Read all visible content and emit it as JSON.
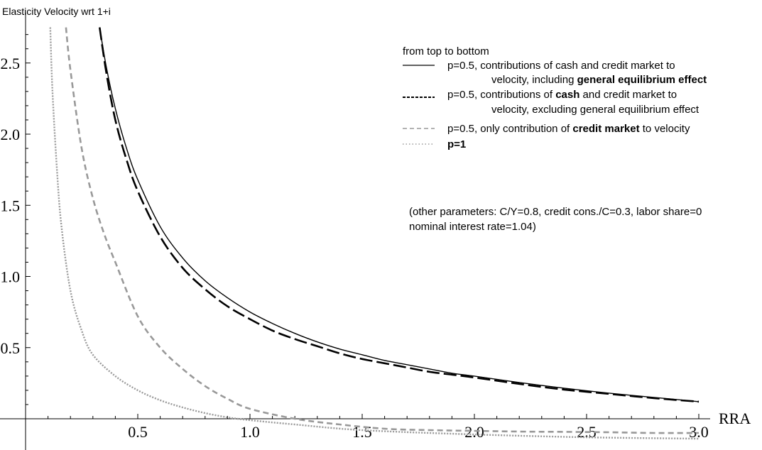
{
  "chart_data": {
    "type": "line",
    "title": "",
    "ylabel": "Elasticity Velocity wrt 1+i",
    "xlabel": "RRA",
    "xlim": [
      0,
      3.0
    ],
    "ylim": [
      -0.2,
      2.75
    ],
    "x_ticks": [
      0.5,
      1.0,
      1.5,
      2.0,
      2.5,
      3.0
    ],
    "x_tick_labels": [
      "0.5",
      "1.0",
      "1.5",
      "2.0",
      "2.5",
      "3.0"
    ],
    "y_ticks": [
      0.5,
      1.0,
      1.5,
      2.0,
      2.5
    ],
    "y_tick_labels": [
      "0.5",
      "1.0",
      "1.5",
      "2.0",
      "2.5"
    ],
    "grid": false,
    "legend_position": "top-right",
    "legend_header": "from top to bottom",
    "legend": [
      {
        "style": "solid",
        "line1": [
          {
            "t": "p=0.5, contributions of cash and credit market to",
            "b": false
          }
        ],
        "line2": [
          {
            "t": "velocity, including ",
            "b": false
          },
          {
            "t": "general equilibrium effect",
            "b": true
          }
        ]
      },
      {
        "style": "dashed",
        "line1": [
          {
            "t": "p=0.5, contributions of ",
            "b": false
          },
          {
            "t": "cash",
            "b": true
          },
          {
            "t": " and credit market to",
            "b": false
          }
        ],
        "line2": [
          {
            "t": "velocity, excluding general equilibrium effect",
            "b": false
          }
        ]
      },
      {
        "style": "gray-dashed",
        "line1": [
          {
            "t": "p=0.5, only contribution of ",
            "b": false
          },
          {
            "t": "credit market",
            "b": true
          },
          {
            "t": " to velocity",
            "b": false
          }
        ]
      },
      {
        "style": "gray-dotted",
        "line1": [
          {
            "t": "p=1",
            "b": true
          }
        ]
      }
    ],
    "annotation": [
      "(other parameters: C/Y=0.8, credit cons./C=0.3, labor share=0",
      "nominal interest rate=1.04)"
    ],
    "series": [
      {
        "style": "solid",
        "color": "#000000",
        "x": [
          0.33,
          0.36,
          0.4,
          0.45,
          0.5,
          0.6,
          0.7,
          0.8,
          0.9,
          1.0,
          1.1,
          1.2,
          1.3,
          1.4,
          1.5,
          1.6,
          1.7,
          1.8,
          1.9,
          2.0,
          2.2,
          2.4,
          2.6,
          2.8,
          3.0
        ],
        "y": [
          2.75,
          2.47,
          2.18,
          1.9,
          1.68,
          1.35,
          1.13,
          0.97,
          0.85,
          0.75,
          0.67,
          0.6,
          0.54,
          0.49,
          0.45,
          0.41,
          0.38,
          0.35,
          0.32,
          0.3,
          0.255,
          0.215,
          0.18,
          0.15,
          0.12
        ]
      },
      {
        "style": "dashed",
        "color": "#000000",
        "x": [
          0.33,
          0.36,
          0.4,
          0.45,
          0.5,
          0.6,
          0.7,
          0.8,
          0.9,
          1.0,
          1.1,
          1.2,
          1.3,
          1.4,
          1.5,
          1.6,
          1.7,
          1.8,
          1.9,
          2.0,
          2.2,
          2.4,
          2.6,
          2.8,
          3.0
        ],
        "y": [
          2.75,
          2.43,
          2.1,
          1.82,
          1.6,
          1.28,
          1.06,
          0.91,
          0.79,
          0.7,
          0.62,
          0.56,
          0.51,
          0.46,
          0.42,
          0.39,
          0.36,
          0.33,
          0.31,
          0.29,
          0.245,
          0.205,
          0.175,
          0.145,
          0.12
        ]
      },
      {
        "style": "gray-dashed",
        "color": "#999999",
        "x": [
          0.18,
          0.2,
          0.25,
          0.3,
          0.35,
          0.4,
          0.5,
          0.6,
          0.7,
          0.8,
          0.9,
          1.0,
          1.2,
          1.4,
          1.6,
          1.8,
          2.0,
          2.2,
          2.4,
          2.6,
          2.8,
          3.0
        ],
        "y": [
          2.75,
          2.45,
          1.9,
          1.55,
          1.3,
          1.1,
          0.72,
          0.5,
          0.35,
          0.23,
          0.14,
          0.07,
          0.0,
          -0.04,
          -0.07,
          -0.08,
          -0.085,
          -0.09,
          -0.092,
          -0.095,
          -0.1,
          -0.1
        ]
      },
      {
        "style": "gray-dotted",
        "color": "#999999",
        "x": [
          0.11,
          0.12,
          0.14,
          0.16,
          0.2,
          0.25,
          0.3,
          0.4,
          0.5,
          0.6,
          0.7,
          0.8,
          0.9,
          1.0,
          1.2,
          1.5,
          2.0,
          2.5,
          3.0
        ],
        "y": [
          2.75,
          2.3,
          1.75,
          1.35,
          0.9,
          0.62,
          0.45,
          0.3,
          0.2,
          0.13,
          0.08,
          0.04,
          0.01,
          -0.01,
          -0.04,
          -0.08,
          -0.11,
          -0.13,
          -0.14
        ]
      }
    ]
  }
}
